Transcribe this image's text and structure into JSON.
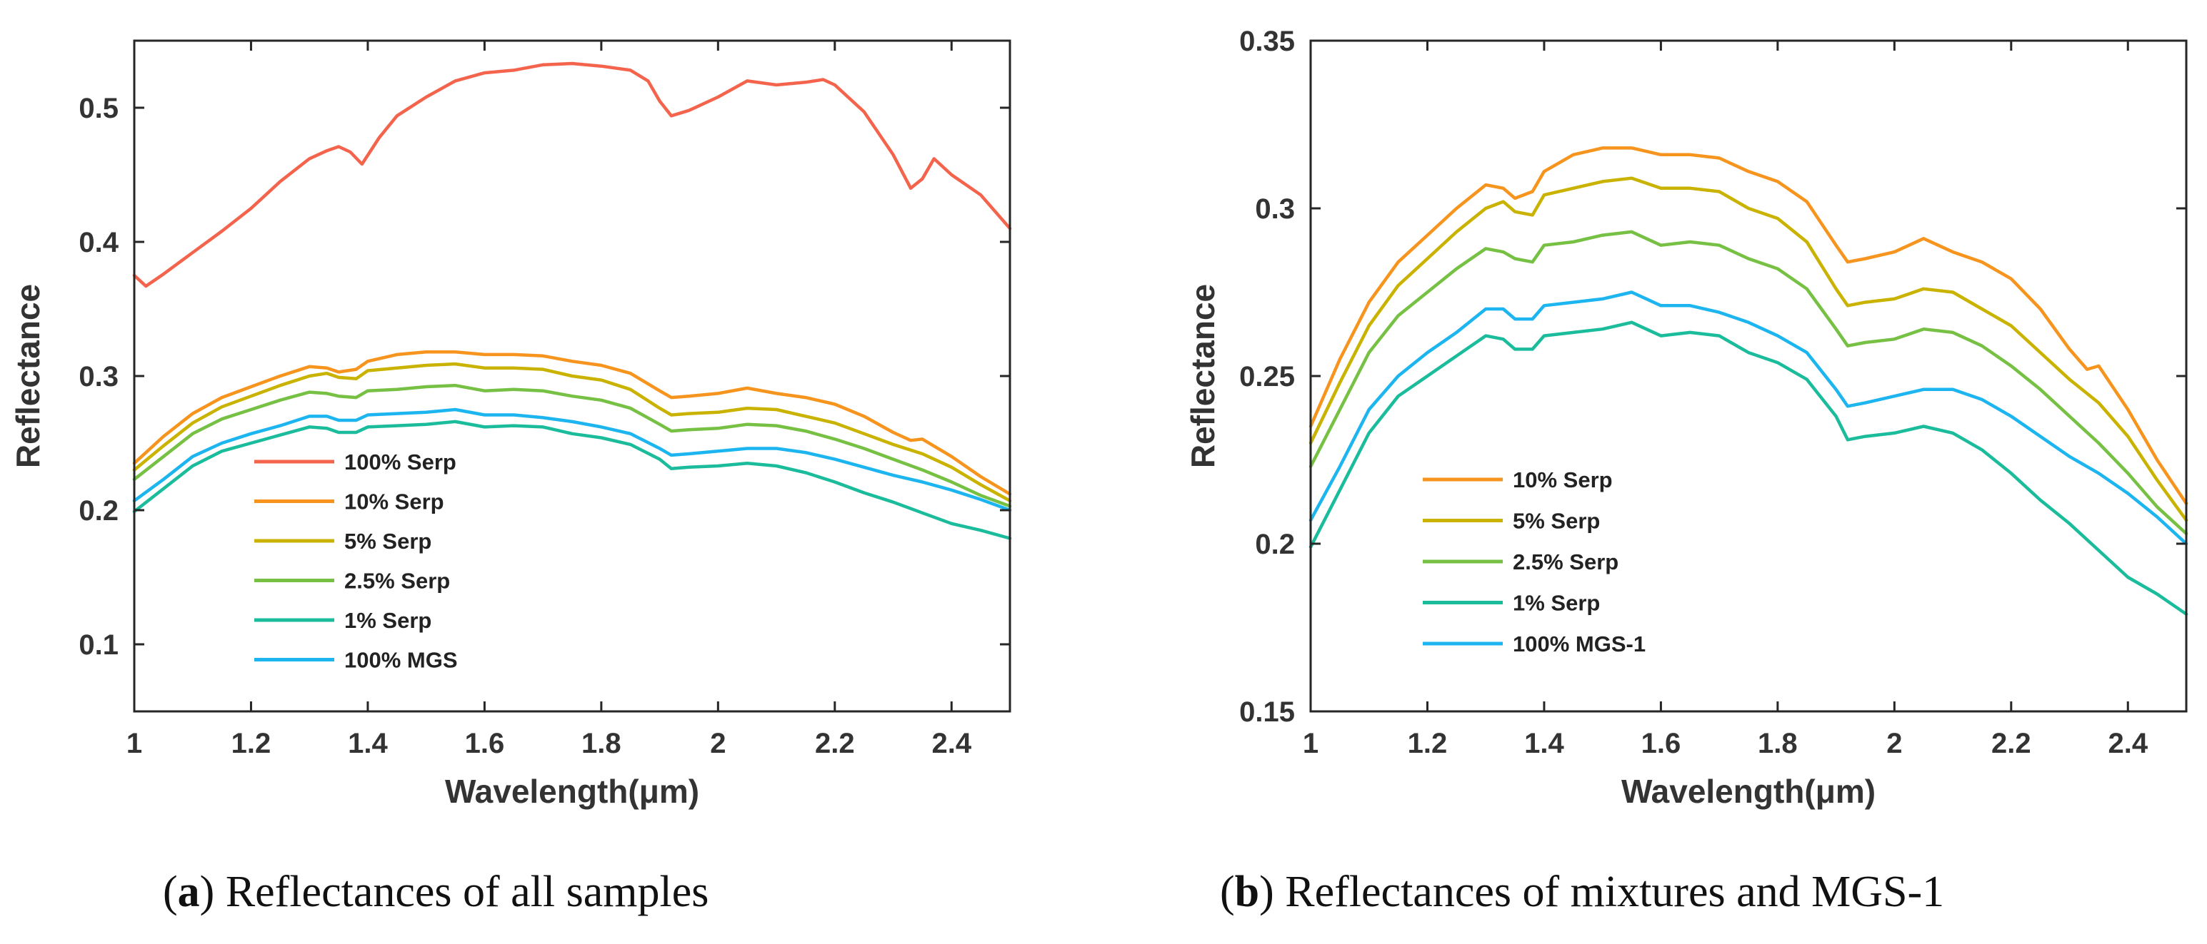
{
  "chart_data": [
    {
      "type": "line",
      "panel_label": "a",
      "caption": "Reflectances of all samples",
      "xlabel": "Wavelength(μm)",
      "ylabel": "Reflectance",
      "xlim": [
        1,
        2.5
      ],
      "ylim": [
        0.05,
        0.55
      ],
      "xticks": [
        1,
        1.2,
        1.4,
        1.6,
        1.8,
        2,
        2.2,
        2.4
      ],
      "xtick_labels": [
        "1",
        "1.2",
        "1.4",
        "1.6",
        "1.8",
        "2",
        "2.2",
        "2.4"
      ],
      "yticks": [
        0.1,
        0.2,
        0.3,
        0.4,
        0.5
      ],
      "ytick_labels": [
        "0.1",
        "0.2",
        "0.3",
        "0.4",
        "0.5"
      ],
      "legend_position": "bottom-left",
      "series": [
        {
          "name": "100% Serp",
          "color": "#F4644C",
          "x": [
            1.0,
            1.02,
            1.05,
            1.1,
            1.15,
            1.2,
            1.25,
            1.3,
            1.33,
            1.35,
            1.37,
            1.39,
            1.42,
            1.45,
            1.5,
            1.55,
            1.6,
            1.65,
            1.7,
            1.75,
            1.8,
            1.85,
            1.88,
            1.9,
            1.92,
            1.95,
            2.0,
            2.05,
            2.1,
            2.15,
            2.18,
            2.2,
            2.25,
            2.3,
            2.33,
            2.35,
            2.37,
            2.4,
            2.45,
            2.5
          ],
          "y": [
            0.375,
            0.367,
            0.376,
            0.392,
            0.408,
            0.425,
            0.445,
            0.462,
            0.468,
            0.471,
            0.467,
            0.458,
            0.478,
            0.494,
            0.508,
            0.52,
            0.526,
            0.528,
            0.532,
            0.533,
            0.531,
            0.528,
            0.52,
            0.505,
            0.494,
            0.498,
            0.508,
            0.52,
            0.517,
            0.519,
            0.521,
            0.517,
            0.497,
            0.465,
            0.44,
            0.447,
            0.462,
            0.45,
            0.435,
            0.41
          ]
        },
        {
          "name": "10% Serp",
          "color": "#F7941D",
          "x": [
            1.0,
            1.05,
            1.1,
            1.15,
            1.2,
            1.25,
            1.3,
            1.33,
            1.35,
            1.38,
            1.4,
            1.45,
            1.5,
            1.55,
            1.6,
            1.65,
            1.7,
            1.75,
            1.8,
            1.85,
            1.9,
            1.92,
            1.95,
            2.0,
            2.05,
            2.1,
            2.15,
            2.2,
            2.25,
            2.3,
            2.33,
            2.35,
            2.4,
            2.45,
            2.5
          ],
          "y": [
            0.235,
            0.255,
            0.272,
            0.284,
            0.292,
            0.3,
            0.307,
            0.306,
            0.303,
            0.305,
            0.311,
            0.316,
            0.318,
            0.318,
            0.316,
            0.316,
            0.315,
            0.311,
            0.308,
            0.302,
            0.289,
            0.284,
            0.285,
            0.287,
            0.291,
            0.287,
            0.284,
            0.279,
            0.27,
            0.258,
            0.252,
            0.253,
            0.24,
            0.225,
            0.212
          ]
        },
        {
          "name": "5% Serp",
          "color": "#C9B200",
          "x": [
            1.0,
            1.05,
            1.1,
            1.15,
            1.2,
            1.25,
            1.3,
            1.33,
            1.35,
            1.38,
            1.4,
            1.45,
            1.5,
            1.55,
            1.6,
            1.65,
            1.7,
            1.75,
            1.8,
            1.85,
            1.9,
            1.92,
            1.95,
            2.0,
            2.05,
            2.1,
            2.15,
            2.2,
            2.25,
            2.3,
            2.35,
            2.4,
            2.45,
            2.5
          ],
          "y": [
            0.23,
            0.248,
            0.265,
            0.277,
            0.285,
            0.293,
            0.3,
            0.302,
            0.299,
            0.298,
            0.304,
            0.306,
            0.308,
            0.309,
            0.306,
            0.306,
            0.305,
            0.3,
            0.297,
            0.29,
            0.276,
            0.271,
            0.272,
            0.273,
            0.276,
            0.275,
            0.27,
            0.265,
            0.257,
            0.249,
            0.242,
            0.232,
            0.219,
            0.207
          ]
        },
        {
          "name": "2.5% Serp",
          "color": "#76C043",
          "x": [
            1.0,
            1.05,
            1.1,
            1.15,
            1.2,
            1.25,
            1.3,
            1.33,
            1.35,
            1.38,
            1.4,
            1.45,
            1.5,
            1.55,
            1.6,
            1.65,
            1.7,
            1.75,
            1.8,
            1.85,
            1.9,
            1.92,
            1.95,
            2.0,
            2.05,
            2.1,
            2.15,
            2.2,
            2.25,
            2.3,
            2.35,
            2.4,
            2.45,
            2.5
          ],
          "y": [
            0.223,
            0.24,
            0.257,
            0.268,
            0.275,
            0.282,
            0.288,
            0.287,
            0.285,
            0.284,
            0.289,
            0.29,
            0.292,
            0.293,
            0.289,
            0.29,
            0.289,
            0.285,
            0.282,
            0.276,
            0.264,
            0.259,
            0.26,
            0.261,
            0.264,
            0.263,
            0.259,
            0.253,
            0.246,
            0.238,
            0.23,
            0.221,
            0.211,
            0.203
          ]
        },
        {
          "name": "1% Serp",
          "color": "#1ABC9C",
          "x": [
            1.0,
            1.05,
            1.1,
            1.15,
            1.2,
            1.25,
            1.3,
            1.33,
            1.35,
            1.38,
            1.4,
            1.45,
            1.5,
            1.55,
            1.6,
            1.65,
            1.7,
            1.75,
            1.8,
            1.85,
            1.9,
            1.92,
            1.95,
            2.0,
            2.05,
            2.1,
            2.15,
            2.2,
            2.25,
            2.3,
            2.35,
            2.4,
            2.45,
            2.5
          ],
          "y": [
            0.199,
            0.216,
            0.233,
            0.244,
            0.25,
            0.256,
            0.262,
            0.261,
            0.258,
            0.258,
            0.262,
            0.263,
            0.264,
            0.266,
            0.262,
            0.263,
            0.262,
            0.257,
            0.254,
            0.249,
            0.238,
            0.231,
            0.232,
            0.233,
            0.235,
            0.233,
            0.228,
            0.221,
            0.213,
            0.206,
            0.198,
            0.19,
            0.185,
            0.179
          ]
        },
        {
          "name": "100% MGS",
          "color": "#1CB5F0",
          "x": [
            1.0,
            1.05,
            1.1,
            1.15,
            1.2,
            1.25,
            1.3,
            1.33,
            1.35,
            1.38,
            1.4,
            1.45,
            1.5,
            1.55,
            1.6,
            1.65,
            1.7,
            1.75,
            1.8,
            1.85,
            1.9,
            1.92,
            1.95,
            2.0,
            2.05,
            2.1,
            2.15,
            2.2,
            2.25,
            2.3,
            2.35,
            2.4,
            2.45,
            2.5
          ],
          "y": [
            0.207,
            0.223,
            0.24,
            0.25,
            0.257,
            0.263,
            0.27,
            0.27,
            0.267,
            0.267,
            0.271,
            0.272,
            0.273,
            0.275,
            0.271,
            0.271,
            0.269,
            0.266,
            0.262,
            0.257,
            0.246,
            0.241,
            0.242,
            0.244,
            0.246,
            0.246,
            0.243,
            0.238,
            0.232,
            0.226,
            0.221,
            0.215,
            0.208,
            0.2
          ]
        }
      ]
    },
    {
      "type": "line",
      "panel_label": "b",
      "caption": "Reflectances of mixtures and MGS-1",
      "xlabel": "Wavelength(μm)",
      "ylabel": "Reflectance",
      "xlim": [
        1,
        2.5
      ],
      "ylim": [
        0.15,
        0.35
      ],
      "xticks": [
        1,
        1.2,
        1.4,
        1.6,
        1.8,
        2,
        2.2,
        2.4
      ],
      "xtick_labels": [
        "1",
        "1.2",
        "1.4",
        "1.6",
        "1.8",
        "2",
        "2.2",
        "2.4"
      ],
      "yticks": [
        0.15,
        0.2,
        0.25,
        0.3,
        0.35
      ],
      "ytick_labels": [
        "0.15",
        "0.2",
        "0.25",
        "0.3",
        "0.35"
      ],
      "legend_position": "bottom-left",
      "series": [
        {
          "name": "10% Serp",
          "color": "#F7941D",
          "x": [
            1.0,
            1.05,
            1.1,
            1.15,
            1.2,
            1.25,
            1.3,
            1.33,
            1.35,
            1.38,
            1.4,
            1.45,
            1.5,
            1.55,
            1.6,
            1.65,
            1.7,
            1.75,
            1.8,
            1.85,
            1.9,
            1.92,
            1.95,
            2.0,
            2.05,
            2.1,
            2.15,
            2.2,
            2.25,
            2.3,
            2.33,
            2.35,
            2.4,
            2.45,
            2.5
          ],
          "y": [
            0.235,
            0.255,
            0.272,
            0.284,
            0.292,
            0.3,
            0.307,
            0.306,
            0.303,
            0.305,
            0.311,
            0.316,
            0.318,
            0.318,
            0.316,
            0.316,
            0.315,
            0.311,
            0.308,
            0.302,
            0.289,
            0.284,
            0.285,
            0.287,
            0.291,
            0.287,
            0.284,
            0.279,
            0.27,
            0.258,
            0.252,
            0.253,
            0.24,
            0.225,
            0.212
          ]
        },
        {
          "name": "5% Serp",
          "color": "#C9B200",
          "x": [
            1.0,
            1.05,
            1.1,
            1.15,
            1.2,
            1.25,
            1.3,
            1.33,
            1.35,
            1.38,
            1.4,
            1.45,
            1.5,
            1.55,
            1.6,
            1.65,
            1.7,
            1.75,
            1.8,
            1.85,
            1.9,
            1.92,
            1.95,
            2.0,
            2.05,
            2.1,
            2.15,
            2.2,
            2.25,
            2.3,
            2.35,
            2.4,
            2.45,
            2.5
          ],
          "y": [
            0.23,
            0.248,
            0.265,
            0.277,
            0.285,
            0.293,
            0.3,
            0.302,
            0.299,
            0.298,
            0.304,
            0.306,
            0.308,
            0.309,
            0.306,
            0.306,
            0.305,
            0.3,
            0.297,
            0.29,
            0.276,
            0.271,
            0.272,
            0.273,
            0.276,
            0.275,
            0.27,
            0.265,
            0.257,
            0.249,
            0.242,
            0.232,
            0.219,
            0.207
          ]
        },
        {
          "name": "2.5% Serp",
          "color": "#76C043",
          "x": [
            1.0,
            1.05,
            1.1,
            1.15,
            1.2,
            1.25,
            1.3,
            1.33,
            1.35,
            1.38,
            1.4,
            1.45,
            1.5,
            1.55,
            1.6,
            1.65,
            1.7,
            1.75,
            1.8,
            1.85,
            1.9,
            1.92,
            1.95,
            2.0,
            2.05,
            2.1,
            2.15,
            2.2,
            2.25,
            2.3,
            2.35,
            2.4,
            2.45,
            2.5
          ],
          "y": [
            0.223,
            0.24,
            0.257,
            0.268,
            0.275,
            0.282,
            0.288,
            0.287,
            0.285,
            0.284,
            0.289,
            0.29,
            0.292,
            0.293,
            0.289,
            0.29,
            0.289,
            0.285,
            0.282,
            0.276,
            0.264,
            0.259,
            0.26,
            0.261,
            0.264,
            0.263,
            0.259,
            0.253,
            0.246,
            0.238,
            0.23,
            0.221,
            0.211,
            0.203
          ]
        },
        {
          "name": "1% Serp",
          "color": "#1ABC9C",
          "x": [
            1.0,
            1.05,
            1.1,
            1.15,
            1.2,
            1.25,
            1.3,
            1.33,
            1.35,
            1.38,
            1.4,
            1.45,
            1.5,
            1.55,
            1.6,
            1.65,
            1.7,
            1.75,
            1.8,
            1.85,
            1.9,
            1.92,
            1.95,
            2.0,
            2.05,
            2.1,
            2.15,
            2.2,
            2.25,
            2.3,
            2.35,
            2.4,
            2.45,
            2.5
          ],
          "y": [
            0.199,
            0.216,
            0.233,
            0.244,
            0.25,
            0.256,
            0.262,
            0.261,
            0.258,
            0.258,
            0.262,
            0.263,
            0.264,
            0.266,
            0.262,
            0.263,
            0.262,
            0.257,
            0.254,
            0.249,
            0.238,
            0.231,
            0.232,
            0.233,
            0.235,
            0.233,
            0.228,
            0.221,
            0.213,
            0.206,
            0.198,
            0.19,
            0.185,
            0.179
          ]
        },
        {
          "name": "100% MGS-1",
          "color": "#1CB5F0",
          "x": [
            1.0,
            1.05,
            1.1,
            1.15,
            1.2,
            1.25,
            1.3,
            1.33,
            1.35,
            1.38,
            1.4,
            1.45,
            1.5,
            1.55,
            1.6,
            1.65,
            1.7,
            1.75,
            1.8,
            1.85,
            1.9,
            1.92,
            1.95,
            2.0,
            2.05,
            2.1,
            2.15,
            2.2,
            2.25,
            2.3,
            2.35,
            2.4,
            2.45,
            2.5
          ],
          "y": [
            0.207,
            0.223,
            0.24,
            0.25,
            0.257,
            0.263,
            0.27,
            0.27,
            0.267,
            0.267,
            0.271,
            0.272,
            0.273,
            0.275,
            0.271,
            0.271,
            0.269,
            0.266,
            0.262,
            0.257,
            0.246,
            0.241,
            0.242,
            0.244,
            0.246,
            0.246,
            0.243,
            0.238,
            0.232,
            0.226,
            0.221,
            0.215,
            0.208,
            0.2
          ]
        }
      ]
    }
  ]
}
